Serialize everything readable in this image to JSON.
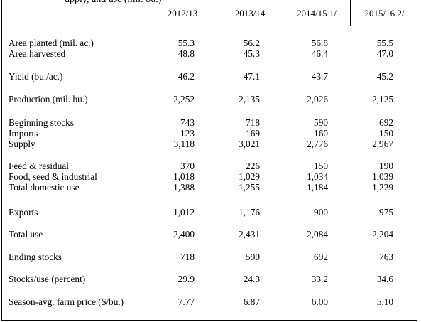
{
  "table": {
    "title_fragment": "upply, and use (mil. bu.)",
    "columns": [
      "2012/13",
      "2013/14",
      "2014/15 1/",
      "2015/16 2/"
    ],
    "groups": [
      {
        "rows": [
          {
            "label": "Area planted (mil. ac.)",
            "values": [
              "55.3",
              "56.2",
              "56.8",
              "55.5"
            ]
          },
          {
            "label": "Area harvested",
            "values": [
              "48.8",
              "45.3",
              "46.4",
              "47.0"
            ]
          }
        ]
      },
      {
        "rows": [
          {
            "label": "Yield (bu./ac.)",
            "values": [
              "46.2",
              "47.1",
              "43.7",
              "45.2"
            ]
          }
        ]
      },
      {
        "rows": [
          {
            "label": "Production (mil. bu.)",
            "values": [
              "2,252",
              "2,135",
              "2,026",
              "2,125"
            ]
          }
        ]
      },
      {
        "rows": [
          {
            "label": "Beginning stocks",
            "values": [
              "743",
              "718",
              "590",
              "692"
            ]
          },
          {
            "label": "Imports",
            "values": [
              "123",
              "169",
              "160",
              "150"
            ]
          },
          {
            "label": "Supply",
            "values": [
              "3,118",
              "3,021",
              "2,776",
              "2,967"
            ]
          }
        ]
      },
      {
        "rows": [
          {
            "label": "Feed & residual",
            "values": [
              "370",
              "226",
              "150",
              "190"
            ]
          },
          {
            "label": "Food, seed & industrial",
            "values": [
              "1,018",
              "1,029",
              "1,034",
              "1,039"
            ]
          },
          {
            "label": "Total domestic use",
            "values": [
              "1,388",
              "1,255",
              "1,184",
              "1,229"
            ]
          }
        ]
      },
      {
        "rows": [
          {
            "label": "Exports",
            "values": [
              "1,012",
              "1,176",
              "900",
              "975"
            ]
          }
        ]
      },
      {
        "rows": [
          {
            "label": "Total use",
            "values": [
              "2,400",
              "2,431",
              "2,084",
              "2,204"
            ]
          }
        ]
      },
      {
        "rows": [
          {
            "label": "Ending stocks",
            "values": [
              "718",
              "590",
              "692",
              "763"
            ]
          }
        ]
      },
      {
        "rows": [
          {
            "label": "Stocks/use (percent)",
            "values": [
              "29.9",
              "24.3",
              "33.2",
              "34.6"
            ]
          }
        ]
      },
      {
        "rows": [
          {
            "label": "Season-avg. farm price ($/bu.)",
            "values": [
              "7.77",
              "6.87",
              "6.00",
              "5.10"
            ]
          }
        ]
      }
    ]
  }
}
